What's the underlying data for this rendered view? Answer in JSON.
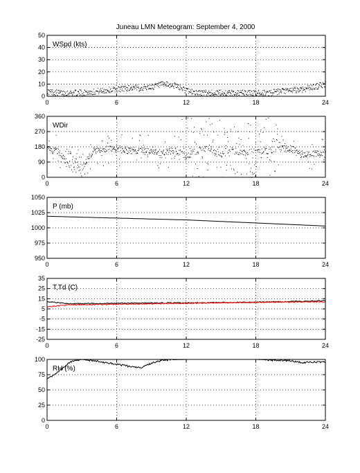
{
  "title": "Juneau LMN Meteogram: September  4, 2000",
  "chart_data": [
    {
      "type": "scatter",
      "label": "WSpd (kts)",
      "ylim": [
        0,
        50
      ],
      "yticks": [
        0,
        10,
        20,
        30,
        40,
        50
      ],
      "xlim": [
        0,
        24
      ],
      "xticks": [
        0,
        6,
        12,
        18,
        24
      ],
      "grid": true,
      "series": [
        {
          "color": "#000000",
          "x": [
            0,
            1,
            2,
            3,
            4,
            5,
            6,
            7,
            8,
            9,
            10,
            11,
            12,
            13,
            14,
            15,
            16,
            17,
            18,
            19,
            20,
            21,
            22,
            23,
            24
          ],
          "y": [
            4,
            3,
            3,
            3,
            4,
            5,
            6,
            7,
            7,
            8,
            10,
            9,
            5,
            3,
            3,
            3,
            3,
            3,
            3,
            3,
            4,
            5,
            6,
            8,
            10
          ]
        }
      ]
    },
    {
      "type": "scatter",
      "label": "WDir",
      "ylim": [
        0,
        360
      ],
      "yticks": [
        0,
        90,
        180,
        270,
        360
      ],
      "xlim": [
        0,
        24
      ],
      "xticks": [
        0,
        6,
        12,
        18,
        24
      ],
      "grid": true,
      "series": [
        {
          "color": "#000000",
          "x": [
            0,
            1,
            2,
            3,
            4,
            5,
            6,
            7,
            8,
            9,
            10,
            11,
            12,
            13,
            14,
            15,
            16,
            17,
            18,
            19,
            20,
            21,
            22,
            23,
            24
          ],
          "y": [
            170,
            150,
            90,
            60,
            160,
            170,
            170,
            160,
            160,
            150,
            150,
            160,
            130,
            160,
            170,
            130,
            160,
            150,
            160,
            160,
            170,
            170,
            140,
            140,
            140
          ]
        }
      ]
    },
    {
      "type": "line",
      "label": "P (mb)",
      "ylim": [
        950,
        1050
      ],
      "yticks": [
        950,
        975,
        1000,
        1025,
        1050
      ],
      "xlim": [
        0,
        24
      ],
      "xticks": [
        0,
        6,
        12,
        18,
        24
      ],
      "grid": true,
      "series": [
        {
          "color": "#000000",
          "x": [
            0,
            6,
            12,
            18,
            24
          ],
          "y": [
            1019,
            1016,
            1013,
            1008,
            1003
          ]
        }
      ]
    },
    {
      "type": "line",
      "label": "T,Td (C)",
      "ylim": [
        -25,
        35
      ],
      "yticks": [
        -25,
        -15,
        -5,
        5,
        15,
        25,
        35
      ],
      "xlim": [
        0,
        24
      ],
      "xticks": [
        0,
        6,
        12,
        18,
        24
      ],
      "grid": true,
      "series": [
        {
          "color": "#000000",
          "x": [
            0,
            1,
            2,
            6,
            12,
            18,
            24
          ],
          "y": [
            12,
            11,
            10,
            10.5,
            11,
            11.5,
            13
          ]
        },
        {
          "color": "#ff0000",
          "x": [
            0,
            1,
            2,
            6,
            12,
            18,
            24
          ],
          "y": [
            7,
            8,
            9,
            9.5,
            10.5,
            11.5,
            12
          ]
        }
      ]
    },
    {
      "type": "line",
      "label": "RH (%)",
      "ylim": [
        0,
        100
      ],
      "yticks": [
        0,
        25,
        50,
        75,
        100
      ],
      "xlim": [
        0,
        24
      ],
      "xticks": [
        0,
        6,
        12,
        18,
        24
      ],
      "grid": true,
      "series": [
        {
          "color": "#000000",
          "x": [
            0,
            0.5,
            1,
            2,
            3,
            4,
            6,
            8,
            9,
            10,
            12,
            15,
            18,
            21,
            22,
            24
          ],
          "y": [
            68,
            73,
            80,
            96,
            100,
            98,
            92,
            86,
            94,
            99,
            100,
            100,
            100,
            98,
            95,
            96
          ]
        }
      ]
    }
  ]
}
